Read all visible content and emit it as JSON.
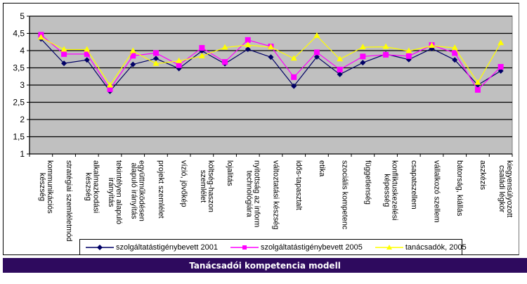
{
  "chart_data": {
    "type": "line",
    "title": "",
    "xlabel": "",
    "ylabel": "",
    "ylim": [
      1,
      5
    ],
    "yticks": [
      "1",
      "1,5",
      "2",
      "2,5",
      "3",
      "3,5",
      "4",
      "4,5",
      "5"
    ],
    "ytick_values": [
      1,
      1.5,
      2,
      2.5,
      3,
      3.5,
      4,
      4.5,
      5
    ],
    "grid": true,
    "legend_position": "bottom",
    "categories": [
      [
        "kommunikációs",
        "készség"
      ],
      [
        "stratégiai szemléletmód"
      ],
      [
        "alkalmazkodási",
        "készség"
      ],
      [
        "tekintélyen alapuló",
        "irányítás"
      ],
      [
        "együttműködésen",
        "alapuló irányítás"
      ],
      [
        "projekt szemlélet"
      ],
      [
        "vízió, jövőkép"
      ],
      [
        "költség-haszon",
        "szemlélet"
      ],
      [
        "lojalitás"
      ],
      [
        "nyitottság az inform",
        "technológiára"
      ],
      [
        "változtatási készség"
      ],
      [
        "idős-tapasztalt"
      ],
      [
        "etika"
      ],
      [
        "szociális kompetenc"
      ],
      [
        "függetlenség"
      ],
      [
        "konfliktuskezelési",
        "képesség"
      ],
      [
        "csapatszellem"
      ],
      [
        "vállalkozó szellem"
      ],
      [
        "bátorság, kiállás"
      ],
      [
        "aszkézis"
      ],
      [
        "kiegyensúlyozott",
        "családi légkör"
      ]
    ],
    "series": [
      {
        "name": "szolgáltatástigénybevett 2001",
        "color": "#000066",
        "marker": "diamond",
        "values": [
          4.34,
          3.63,
          3.73,
          2.82,
          3.6,
          3.77,
          3.48,
          3.99,
          3.62,
          4.04,
          3.81,
          2.97,
          3.82,
          3.31,
          3.65,
          3.9,
          3.74,
          4.06,
          3.73,
          3.0,
          3.41
        ]
      },
      {
        "name": "szolgáltatástigénybevett 2005",
        "color": "#ff00ff",
        "marker": "square",
        "values": [
          4.46,
          3.9,
          3.9,
          2.88,
          3.85,
          3.93,
          3.58,
          4.08,
          3.67,
          4.31,
          4.12,
          3.23,
          3.95,
          3.45,
          3.83,
          3.88,
          3.84,
          4.16,
          3.93,
          2.86,
          3.53
        ]
      },
      {
        "name": "tanácsadók, 2005",
        "color": "#ffff00",
        "marker": "triangle",
        "values": [
          4.38,
          4.03,
          4.03,
          2.99,
          3.99,
          3.62,
          3.7,
          3.84,
          4.09,
          4.16,
          4.1,
          3.77,
          4.43,
          3.75,
          4.1,
          4.11,
          3.99,
          4.14,
          4.08,
          3.07,
          4.22
        ]
      }
    ],
    "plot_background": "#c0c0c0"
  },
  "caption": "Tanácsadói kompetencia modell"
}
